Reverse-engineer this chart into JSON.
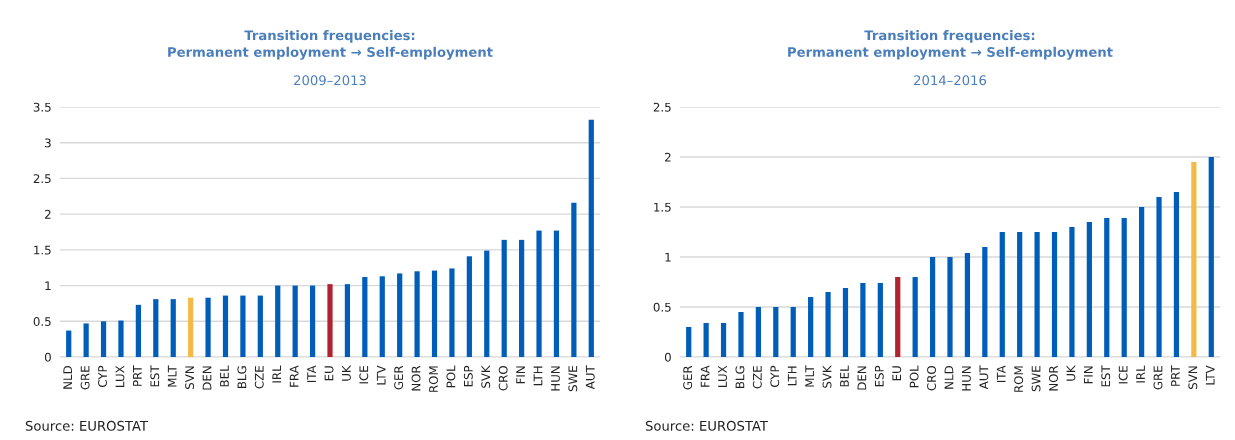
{
  "chart_data": [
    {
      "type": "bar",
      "title": "Transition frequencies:\nPermanent employment → Self-employment",
      "subtitle": "2009–2013",
      "categories": [
        "NLD",
        "GRE",
        "CYP",
        "LUX",
        "PRT",
        "EST",
        "MLT",
        "SVN",
        "DEN",
        "BEL",
        "BLG",
        "CZE",
        "IRL",
        "FRA",
        "ITA",
        "EU",
        "UK",
        "ICE",
        "LTV",
        "GER",
        "NOR",
        "ROM",
        "POL",
        "ESP",
        "SVK",
        "CRO",
        "FIN",
        "LTH",
        "HUN",
        "SWE",
        "AUT"
      ],
      "values": [
        0.37,
        0.47,
        0.5,
        0.51,
        0.73,
        0.81,
        0.81,
        0.83,
        0.83,
        0.86,
        0.86,
        0.86,
        1.0,
        1.0,
        1.0,
        1.02,
        1.02,
        1.12,
        1.13,
        1.17,
        1.2,
        1.21,
        1.24,
        1.41,
        1.49,
        1.64,
        1.64,
        1.77,
        1.77,
        2.16,
        3.32
      ],
      "colors": [
        "#005eb8",
        "#005eb8",
        "#005eb8",
        "#005eb8",
        "#005eb8",
        "#005eb8",
        "#005eb8",
        "#f3bb45",
        "#005eb8",
        "#005eb8",
        "#005eb8",
        "#005eb8",
        "#005eb8",
        "#005eb8",
        "#005eb8",
        "#b0242f",
        "#005eb8",
        "#005eb8",
        "#005eb8",
        "#005eb8",
        "#005eb8",
        "#005eb8",
        "#005eb8",
        "#005eb8",
        "#005eb8",
        "#005eb8",
        "#005eb8",
        "#005eb8",
        "#005eb8",
        "#005eb8",
        "#005eb8"
      ],
      "ylim": [
        0,
        3.5
      ],
      "yticks": [
        0,
        0.5,
        1,
        1.5,
        2,
        2.5,
        3,
        3.5
      ],
      "grid": "y",
      "annotations": [
        "Source: EUROSTAT"
      ]
    },
    {
      "type": "bar",
      "title": "Transition frequencies:\nPermanent employment → Self-employment",
      "subtitle": "2014–2016",
      "categories": [
        "GER",
        "FRA",
        "LUX",
        "BLG",
        "CZE",
        "CYP",
        "LTH",
        "MLT",
        "SVK",
        "BEL",
        "DEN",
        "ESP",
        "EU",
        "POL",
        "CRO",
        "NLD",
        "HUN",
        "AUT",
        "ITA",
        "ROM",
        "SWE",
        "NOR",
        "UK",
        "FIN",
        "EST",
        "ICE",
        "IRL",
        "GRE",
        "PRT",
        "SVN",
        "LTV"
      ],
      "values": [
        0.3,
        0.34,
        0.34,
        0.45,
        0.5,
        0.5,
        0.5,
        0.6,
        0.65,
        0.69,
        0.74,
        0.74,
        0.8,
        0.8,
        1.0,
        1.0,
        1.04,
        1.1,
        1.25,
        1.25,
        1.25,
        1.25,
        1.3,
        1.35,
        1.39,
        1.39,
        1.5,
        1.6,
        1.65,
        1.95,
        2.0
      ],
      "colors": [
        "#005eb8",
        "#005eb8",
        "#005eb8",
        "#005eb8",
        "#005eb8",
        "#005eb8",
        "#005eb8",
        "#005eb8",
        "#005eb8",
        "#005eb8",
        "#005eb8",
        "#005eb8",
        "#b0242f",
        "#005eb8",
        "#005eb8",
        "#005eb8",
        "#005eb8",
        "#005eb8",
        "#005eb8",
        "#005eb8",
        "#005eb8",
        "#005eb8",
        "#005eb8",
        "#005eb8",
        "#005eb8",
        "#005eb8",
        "#005eb8",
        "#005eb8",
        "#005eb8",
        "#f3bb45",
        "#005eb8"
      ],
      "ylim": [
        0,
        2.5
      ],
      "yticks": [
        0,
        0.5,
        1,
        1.5,
        2,
        2.5
      ],
      "grid": "y",
      "annotations": [
        "Source: EUROSTAT"
      ]
    }
  ]
}
